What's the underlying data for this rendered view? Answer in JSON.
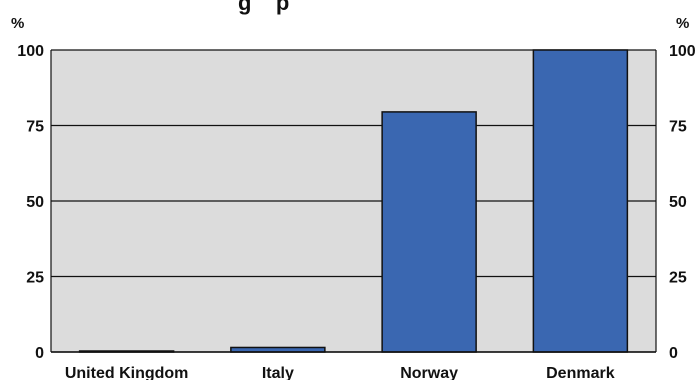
{
  "chart_data": {
    "type": "bar",
    "title": "",
    "title_visible_fragment": "g    p",
    "categories": [
      "United Kingdom",
      "Italy",
      "Norway",
      "Denmark"
    ],
    "values": [
      0.3,
      1.5,
      79.5,
      100
    ],
    "xlabel": "",
    "ylabel": "%",
    "y2label": "%",
    "ylim": [
      0,
      100
    ],
    "yticks": [
      0,
      25,
      50,
      75,
      100
    ],
    "grid": true,
    "colors": {
      "bar": "#3a67b1",
      "bar_outline": "#111111",
      "plot_background": "#dcdcdc",
      "gridline": "#111111"
    }
  }
}
